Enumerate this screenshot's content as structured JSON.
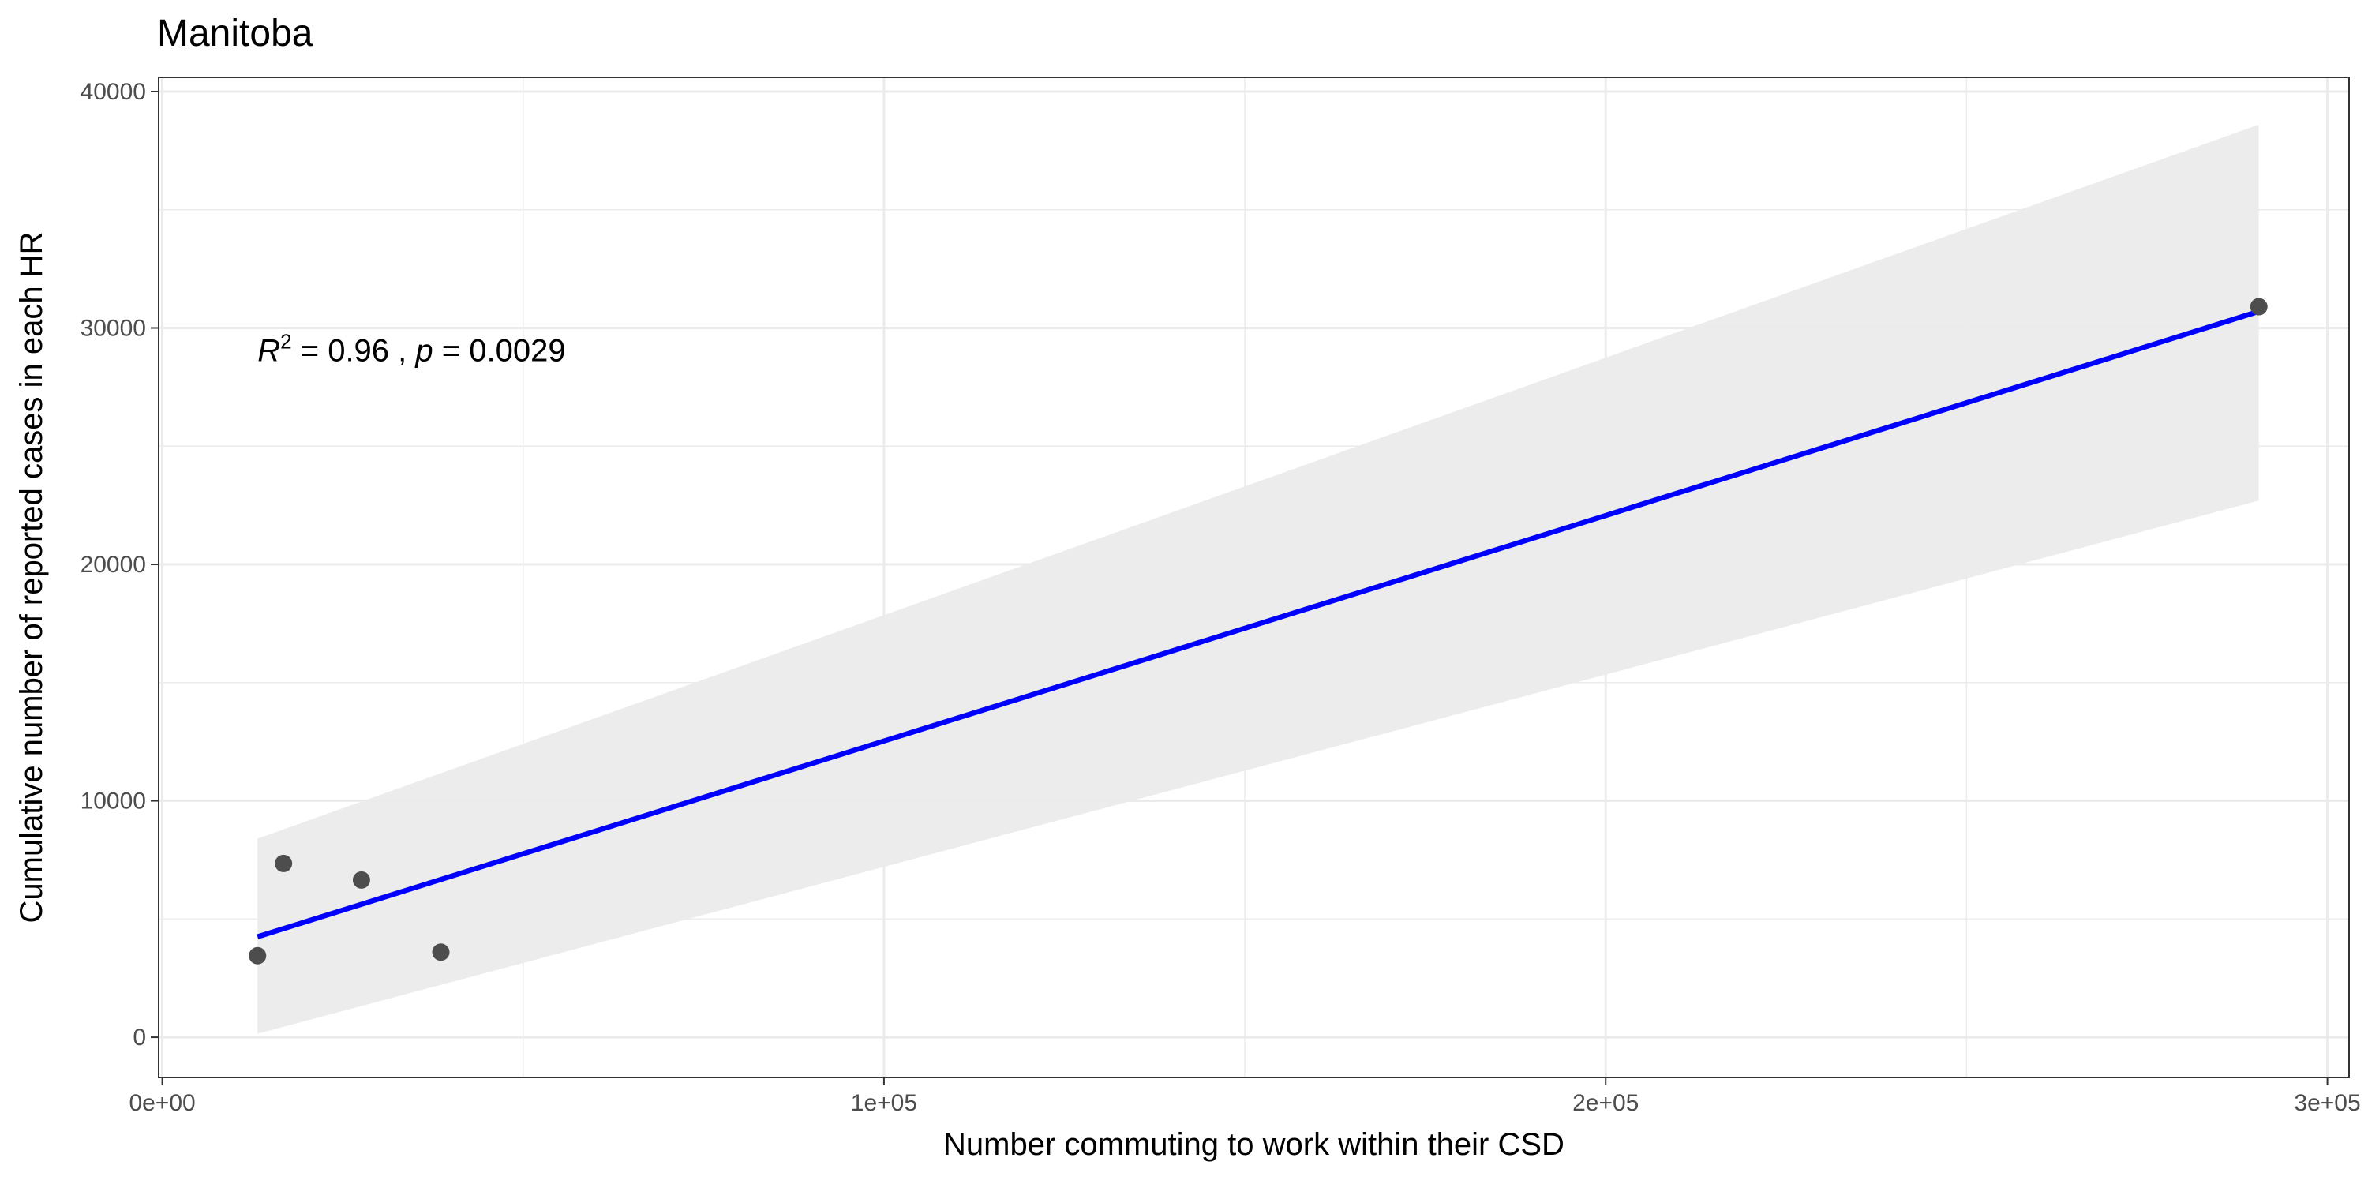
{
  "chart_data": {
    "type": "scatter",
    "title": "Manitoba",
    "xlabel": "Number commuting to work within their CSD",
    "ylabel": "Cumulative number of reported cases in each HR",
    "xlim": [
      -500,
      303000
    ],
    "ylim": [
      -1700,
      40600
    ],
    "x_ticks": [
      0,
      100000,
      200000,
      300000
    ],
    "x_tick_labels": [
      "0e+00",
      "1e+05",
      "2e+05",
      "3e+05"
    ],
    "y_ticks": [
      0,
      10000,
      20000,
      30000,
      40000
    ],
    "y_tick_labels": [
      "0",
      "10000",
      "20000",
      "30000",
      "40000"
    ],
    "grid": true,
    "points": [
      {
        "x": 13200,
        "y": 3450
      },
      {
        "x": 16800,
        "y": 7350
      },
      {
        "x": 27600,
        "y": 6650
      },
      {
        "x": 38600,
        "y": 3600
      },
      {
        "x": 290500,
        "y": 30900
      }
    ],
    "fit_line": {
      "x": [
        13200,
        290500
      ],
      "y": [
        4250,
        30700
      ],
      "color": "#0000ff"
    },
    "confidence_band": {
      "x": [
        13200,
        290500
      ],
      "upper": [
        8400,
        38600
      ],
      "lower": [
        150,
        22700
      ],
      "color": "#ebebeb"
    },
    "annotation": {
      "r_symbol": "R",
      "r_power": "2",
      "r_value": " = 0.96 , ",
      "p_symbol": "p",
      "p_value": " = 0.0029",
      "x": 13200,
      "y": 29000
    },
    "point_color": "#4d4d4d"
  }
}
